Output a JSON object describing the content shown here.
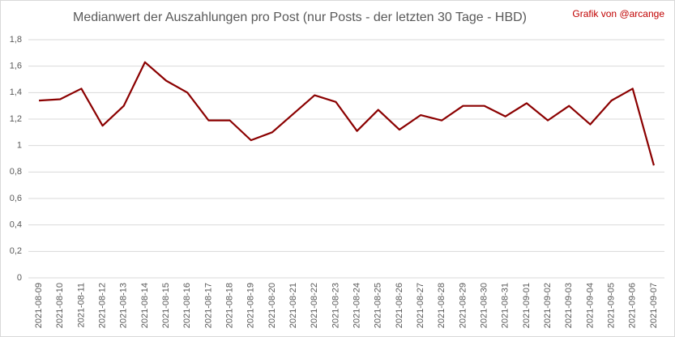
{
  "chart_data": {
    "type": "line",
    "title": "Medianwert der Auszahlungen pro Post (nur Posts - der letzten 30 Tage - HBD)",
    "annotation": "Grafik von @arcange",
    "x": [
      "2021-08-09",
      "2021-08-10",
      "2021-08-11",
      "2021-08-12",
      "2021-08-13",
      "2021-08-14",
      "2021-08-15",
      "2021-08-16",
      "2021-08-17",
      "2021-08-18",
      "2021-08-19",
      "2021-08-20",
      "2021-08-21",
      "2021-08-22",
      "2021-08-23",
      "2021-08-24",
      "2021-08-25",
      "2021-08-26",
      "2021-08-27",
      "2021-08-28",
      "2021-08-29",
      "2021-08-30",
      "2021-08-31",
      "2021-09-01",
      "2021-09-02",
      "2021-09-03",
      "2021-09-04",
      "2021-09-05",
      "2021-09-06",
      "2021-09-07"
    ],
    "series": [
      {
        "color": "#8b0000",
        "values": [
          1.34,
          1.35,
          1.43,
          1.15,
          1.3,
          1.63,
          1.49,
          1.4,
          1.19,
          1.19,
          1.04,
          1.1,
          1.24,
          1.38,
          1.33,
          1.11,
          1.27,
          1.12,
          1.23,
          1.19,
          1.3,
          1.3,
          1.22,
          1.32,
          1.19,
          1.3,
          1.16,
          1.34,
          1.43,
          0.85
        ]
      }
    ],
    "ylim": [
      0,
      1.8
    ],
    "yticks": [
      0,
      {
        "value": 0.2,
        "label": "0,2"
      },
      {
        "value": 0.4,
        "label": "0,4"
      },
      {
        "value": 0.6,
        "label": "0,6"
      },
      {
        "value": 0.8,
        "label": "0,8"
      },
      1,
      {
        "value": 1.2,
        "label": "1,2"
      },
      {
        "value": 1.4,
        "label": "1,4"
      },
      {
        "value": 1.6,
        "label": "1,6"
      },
      {
        "value": 1.8,
        "label": "1,8"
      }
    ],
    "grid": true
  }
}
